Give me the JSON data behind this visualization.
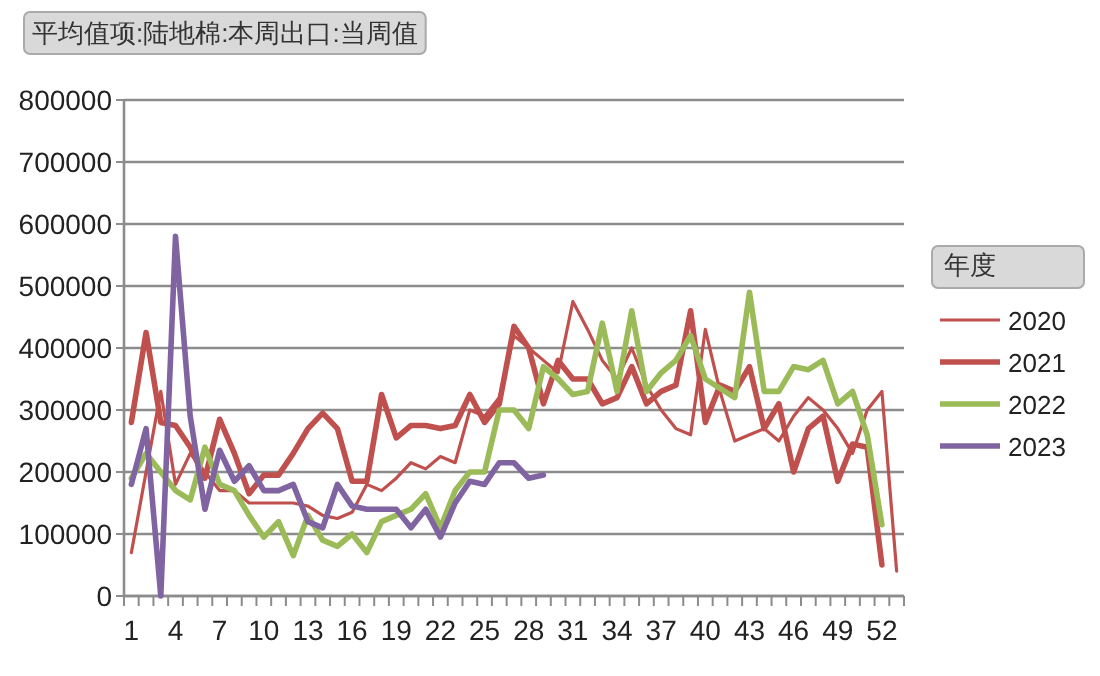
{
  "chart_data": {
    "type": "line",
    "title": "平均值项:陆地棉:本周出口:当周值",
    "legend_title": "年度",
    "categories": [
      "1",
      null,
      null,
      "4",
      null,
      null,
      "7",
      null,
      null,
      "10",
      null,
      null,
      "13",
      null,
      null,
      "16",
      null,
      null,
      "19",
      null,
      null,
      "22",
      null,
      null,
      "25",
      null,
      null,
      "28",
      null,
      null,
      "31",
      null,
      null,
      "34",
      null,
      null,
      "37",
      null,
      null,
      "40",
      null,
      null,
      "43",
      null,
      null,
      "46",
      null,
      null,
      "49",
      null,
      null,
      "52",
      null
    ],
    "series": [
      {
        "name": "2020",
        "color": "#c0504d",
        "values": [
          70000,
          200000,
          330000,
          180000,
          230000,
          200000,
          170000,
          170000,
          150000,
          150000,
          150000,
          150000,
          145000,
          130000,
          125000,
          135000,
          180000,
          170000,
          190000,
          215000,
          205000,
          225000,
          215000,
          300000,
          290000,
          320000,
          420000,
          400000,
          380000,
          360000,
          475000,
          430000,
          380000,
          350000,
          400000,
          340000,
          300000,
          270000,
          260000,
          430000,
          330000,
          250000,
          260000,
          270000,
          250000,
          290000,
          320000,
          300000,
          270000,
          230000,
          300000,
          330000,
          40000
        ]
      },
      {
        "name": "2021",
        "color": "#c0504d",
        "values": [
          280000,
          425000,
          280000,
          275000,
          240000,
          190000,
          285000,
          230000,
          165000,
          195000,
          195000,
          230000,
          270000,
          295000,
          270000,
          185000,
          185000,
          325000,
          255000,
          275000,
          275000,
          270000,
          275000,
          325000,
          280000,
          310000,
          435000,
          400000,
          310000,
          380000,
          350000,
          350000,
          310000,
          320000,
          370000,
          310000,
          330000,
          340000,
          460000,
          280000,
          340000,
          330000,
          370000,
          270000,
          310000,
          200000,
          270000,
          290000,
          185000,
          245000,
          240000,
          50000,
          null
        ]
      },
      {
        "name": "2022",
        "color": "#9bbb59",
        "values": [
          190000,
          230000,
          200000,
          170000,
          155000,
          240000,
          180000,
          170000,
          130000,
          95000,
          120000,
          65000,
          130000,
          90000,
          80000,
          100000,
          70000,
          120000,
          130000,
          140000,
          165000,
          110000,
          170000,
          200000,
          200000,
          300000,
          300000,
          270000,
          370000,
          350000,
          325000,
          330000,
          440000,
          330000,
          460000,
          330000,
          360000,
          380000,
          420000,
          350000,
          335000,
          320000,
          490000,
          330000,
          330000,
          370000,
          365000,
          380000,
          310000,
          330000,
          260000,
          115000,
          null
        ]
      },
      {
        "name": "2023",
        "color": "#8064a2",
        "values": [
          180000,
          270000,
          0,
          580000,
          290000,
          140000,
          235000,
          185000,
          210000,
          170000,
          170000,
          180000,
          120000,
          110000,
          180000,
          145000,
          140000,
          140000,
          140000,
          110000,
          140000,
          95000,
          150000,
          185000,
          180000,
          215000,
          215000,
          190000,
          195000,
          null,
          null,
          null,
          null,
          null,
          null,
          null,
          null,
          null,
          null,
          null,
          null,
          null,
          null,
          null,
          null,
          null,
          null,
          null,
          null,
          null,
          null,
          null,
          null
        ]
      }
    ],
    "ylim": [
      0,
      800000
    ],
    "yticks": [
      0,
      100000,
      200000,
      300000,
      400000,
      500000,
      600000,
      700000,
      800000
    ],
    "grid": "y",
    "legend": "right"
  }
}
